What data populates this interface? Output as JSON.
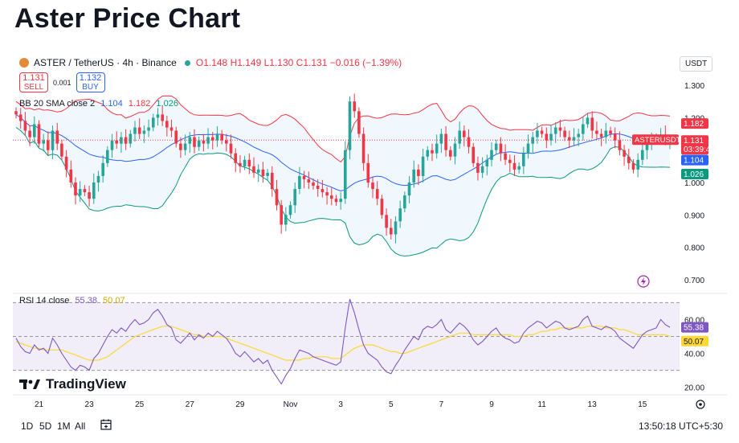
{
  "page": {
    "title": "Aster Price Chart"
  },
  "header": {
    "symbol": "ASTER / TetherUS · 4h · Binance",
    "open": "O1.148",
    "high": "H1.149",
    "low": "L1.130",
    "close": "C1.131",
    "change": "−0.016 (−1.39%)",
    "sell_price": "1.131",
    "sell_label": "SELL",
    "spread": "0.001",
    "buy_price": "1.132",
    "buy_label": "BUY",
    "currency": "USDT"
  },
  "legends": {
    "bb_label": "BB 20 SMA close 2",
    "bb_basis": "1.104",
    "bb_upper": "1.182",
    "bb_lower": "1.026",
    "rsi_label": "RSI 14 close",
    "rsi_value": "55.38",
    "rsi_ma": "50.07"
  },
  "price_tags": {
    "upper": "1.182",
    "symbol": "ASTERUSDT",
    "last": "1.131",
    "countdown": "03:39:43",
    "basis": "1.104",
    "lower": "1.026",
    "rsi": "55.38",
    "rsi_ma": "50.07"
  },
  "branding": {
    "logo": "TradingView"
  },
  "bottom": {
    "ranges": [
      "1D",
      "5D",
      "1M",
      "All"
    ],
    "time": "13:50:18 UTC+5:30"
  },
  "colors": {
    "up": "#26a69a",
    "down": "#f23645",
    "basis": "#2962ff",
    "upper": "#f23645",
    "lower": "#089981",
    "band_fill": "#e3f2fd",
    "rsi": "#7e57c2",
    "rsi_ma": "#fdd835",
    "rsi_band": "#ede7f6"
  },
  "chart_data": [
    {
      "type": "candlestick",
      "title": "ASTER / TetherUS · 4h · Binance",
      "xlabel": "",
      "ylabel": "USDT",
      "x_ticks": [
        "21",
        "23",
        "25",
        "27",
        "29",
        "Nov",
        "3",
        "5",
        "7",
        "9",
        "11",
        "13",
        "15"
      ],
      "y_ticks": [
        0.7,
        0.8,
        0.9,
        1.0,
        1.1,
        1.2,
        1.3
      ],
      "ylim": [
        0.67,
        1.33
      ],
      "x_index": [
        0,
        143
      ],
      "tick_index": [
        5,
        16,
        27,
        38,
        49,
        60,
        71,
        82,
        93,
        104,
        115,
        126,
        137
      ],
      "closes": [
        1.21,
        1.19,
        1.16,
        1.14,
        1.18,
        1.12,
        1.13,
        1.1,
        1.16,
        1.12,
        1.08,
        1.04,
        1.0,
        0.96,
        0.98,
        0.97,
        0.95,
        1.0,
        1.02,
        1.06,
        1.1,
        1.13,
        1.12,
        1.14,
        1.12,
        1.15,
        1.17,
        1.15,
        1.16,
        1.17,
        1.2,
        1.21,
        1.19,
        1.17,
        1.16,
        1.12,
        1.1,
        1.12,
        1.14,
        1.11,
        1.13,
        1.12,
        1.14,
        1.13,
        1.15,
        1.13,
        1.12,
        1.09,
        1.06,
        1.05,
        1.07,
        1.05,
        1.03,
        1.04,
        1.02,
        1.03,
        0.98,
        0.93,
        0.87,
        0.9,
        0.93,
        0.98,
        1.02,
        1.01,
        1.0,
        0.99,
        0.98,
        0.97,
        0.96,
        0.95,
        0.94,
        0.95,
        1.1,
        1.25,
        1.22,
        1.15,
        1.06,
        1.0,
        0.98,
        0.95,
        0.9,
        0.86,
        0.84,
        0.88,
        0.92,
        0.96,
        1.0,
        1.04,
        1.02,
        1.08,
        1.1,
        1.09,
        1.12,
        1.15,
        1.1,
        1.08,
        1.12,
        1.16,
        1.14,
        1.11,
        1.06,
        1.03,
        1.05,
        1.07,
        1.1,
        1.12,
        1.09,
        1.07,
        1.06,
        1.04,
        1.05,
        1.09,
        1.12,
        1.14,
        1.16,
        1.15,
        1.13,
        1.15,
        1.17,
        1.16,
        1.14,
        1.13,
        1.14,
        1.15,
        1.18,
        1.2,
        1.16,
        1.15,
        1.14,
        1.16,
        1.15,
        1.13,
        1.1,
        1.08,
        1.06,
        1.04,
        1.07,
        1.1,
        1.12,
        1.13,
        1.14,
        1.148,
        1.131,
        1.131
      ],
      "bb_basis": 1.104,
      "bb_upper": 1.182,
      "bb_lower": 1.026,
      "last_price": 1.131
    },
    {
      "type": "line",
      "title": "RSI 14 close",
      "y_ticks": [
        20.0,
        40.0,
        60.0
      ],
      "ylim": [
        17,
        73
      ],
      "band": [
        30,
        70
      ],
      "series": [
        {
          "name": "RSI",
          "values": [
            49,
            44,
            41,
            40,
            45,
            42,
            43,
            40,
            49,
            45,
            40,
            36,
            32,
            30,
            33,
            32,
            30,
            37,
            40,
            45,
            50,
            54,
            52,
            55,
            53,
            57,
            60,
            57,
            58,
            60,
            64,
            66,
            62,
            57,
            55,
            48,
            46,
            49,
            52,
            48,
            51,
            49,
            52,
            50,
            53,
            51,
            49,
            45,
            40,
            38,
            41,
            38,
            35,
            37,
            34,
            36,
            30,
            26,
            22,
            27,
            31,
            37,
            42,
            41,
            40,
            38,
            37,
            36,
            35,
            34,
            33,
            35,
            55,
            72,
            64,
            54,
            45,
            40,
            38,
            36,
            32,
            29,
            28,
            33,
            37,
            42,
            46,
            50,
            48,
            54,
            56,
            55,
            57,
            60,
            54,
            52,
            55,
            58,
            56,
            53,
            48,
            45,
            47,
            50,
            53,
            55,
            51,
            49,
            48,
            46,
            47,
            52,
            55,
            57,
            59,
            58,
            55,
            57,
            59,
            58,
            55,
            54,
            55,
            56,
            60,
            62,
            56,
            55,
            54,
            56,
            55,
            53,
            49,
            47,
            45,
            43,
            47,
            51,
            53,
            54,
            55,
            60,
            57,
            55.38
          ]
        },
        {
          "name": "RSI MA",
          "values": [
            47,
            46,
            45,
            44,
            43,
            43,
            42,
            42,
            42,
            42,
            42,
            41,
            40,
            39,
            38,
            37,
            36,
            36,
            36,
            37,
            38,
            40,
            42,
            44,
            46,
            48,
            50,
            51,
            52,
            53,
            54,
            55,
            56,
            56,
            56,
            55,
            54,
            53,
            52,
            51,
            51,
            50,
            50,
            50,
            50,
            50,
            49,
            48,
            47,
            46,
            45,
            44,
            43,
            42,
            41,
            40,
            39,
            38,
            37,
            36,
            36,
            36,
            36,
            37,
            37,
            38,
            38,
            38,
            38,
            37,
            37,
            37,
            39,
            41,
            43,
            44,
            45,
            45,
            45,
            44,
            43,
            42,
            41,
            41,
            40,
            40,
            41,
            42,
            43,
            44,
            45,
            46,
            47,
            48,
            49,
            50,
            51,
            52,
            52,
            52,
            51,
            51,
            51,
            51,
            51,
            51,
            51,
            51,
            51,
            50,
            50,
            50,
            51,
            51,
            52,
            53,
            53,
            54,
            54,
            55,
            55,
            55,
            55,
            55,
            55,
            56,
            56,
            56,
            56,
            55,
            55,
            55,
            54,
            54,
            53,
            52,
            51,
            51,
            51,
            51,
            51,
            51,
            51,
            50.07
          ]
        }
      ]
    }
  ]
}
